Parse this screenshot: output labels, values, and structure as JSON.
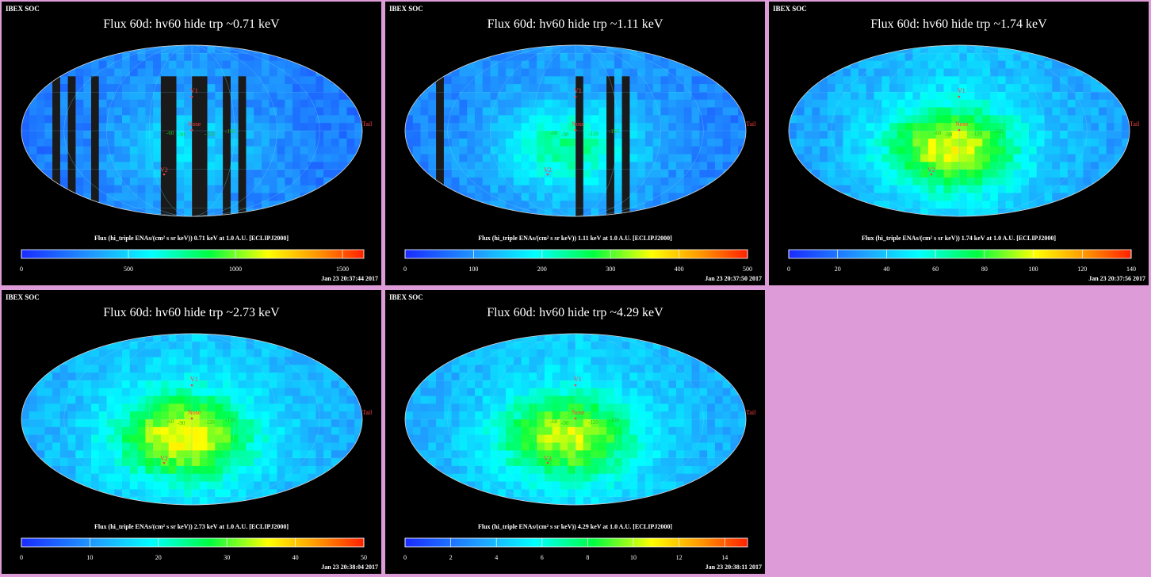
{
  "panels": [
    {
      "id": "p1",
      "header": "IBEX SOC",
      "title": "Flux   60d: hv60 hide trp ~0.71 keV",
      "caption": "Flux (hi_triple ENAs/(cm² s sr keV))  0.71 keV at 1.0 A.U. [ECLIPJ2000]",
      "timestamp": "Jan 23 20:37:44 2017",
      "ticks": [
        "0",
        "500",
        "1000",
        "1500"
      ],
      "tick_values": [
        0,
        500,
        1000,
        1500
      ],
      "scale_max": 1600,
      "labels": {
        "v1": "V1",
        "v2": "V2",
        "nose": "Nose",
        "tail": "Tail"
      }
    },
    {
      "id": "p2",
      "header": "IBEX SOC",
      "title": "Flux   60d: hv60 hide trp ~1.11 keV",
      "caption": "Flux (hi_triple ENAs/(cm² s sr keV))  1.11 keV at 1.0 A.U. [ECLIPJ2000]",
      "timestamp": "Jan 23 20:37:50 2017",
      "ticks": [
        "0",
        "100",
        "200",
        "300",
        "400",
        "500"
      ],
      "tick_values": [
        0,
        100,
        200,
        300,
        400,
        500
      ],
      "scale_max": 500,
      "labels": {
        "v1": "V1",
        "v2": "V2",
        "nose": "Nose",
        "tail": "Tail"
      }
    },
    {
      "id": "p3",
      "header": "IBEX SOC",
      "title": "Flux   60d: hv60 hide trp ~1.74 keV",
      "caption": "Flux (hi_triple ENAs/(cm² s sr keV))  1.74 keV at 1.0 A.U. [ECLIPJ2000]",
      "timestamp": "Jan 23 20:37:56 2017",
      "ticks": [
        "0",
        "20",
        "40",
        "60",
        "80",
        "100",
        "120",
        "140"
      ],
      "tick_values": [
        0,
        20,
        40,
        60,
        80,
        100,
        120,
        140
      ],
      "scale_max": 140,
      "labels": {
        "v1": "V1",
        "v2": "V2",
        "nose": "Nose",
        "tail": "Tail"
      }
    },
    {
      "id": "p4",
      "header": "IBEX SOC",
      "title": "Flux   60d: hv60 hide trp ~2.73 keV",
      "caption": "Flux (hi_triple ENAs/(cm² s sr keV))  2.73 keV at 1.0 A.U. [ECLIPJ2000]",
      "timestamp": "Jan 23 20:38:04 2017",
      "ticks": [
        "0",
        "10",
        "20",
        "30",
        "40",
        "50"
      ],
      "tick_values": [
        0,
        10,
        20,
        30,
        40,
        50
      ],
      "scale_max": 50,
      "labels": {
        "v1": "V1",
        "v2": "V2",
        "nose": "Nose",
        "tail": "Tail"
      }
    },
    {
      "id": "p5",
      "header": "IBEX SOC",
      "title": "Flux   60d: hv60 hide trp ~4.29 keV",
      "caption": "Flux (hi_triple ENAs/(cm² s sr keV))  4.29 keV at 1.0 A.U. [ECLIPJ2000]",
      "timestamp": "Jan 23 20:38:11 2017",
      "ticks": [
        "0",
        "2",
        "4",
        "6",
        "8",
        "10",
        "12",
        "14"
      ],
      "tick_values": [
        0,
        2,
        4,
        6,
        8,
        10,
        12,
        14
      ],
      "scale_max": 15,
      "labels": {
        "v1": "V1",
        "v2": "V2",
        "nose": "Nose",
        "tail": "Tail"
      }
    }
  ],
  "grid_labels": [
    "-60",
    "-90",
    "-120",
    "-150",
    "30",
    "60",
    "90",
    "120",
    "150"
  ],
  "colors": {
    "background": "#dd9cd8",
    "panel": "#000000",
    "grid": "#1cc81c",
    "marker": "#ff4040"
  }
}
